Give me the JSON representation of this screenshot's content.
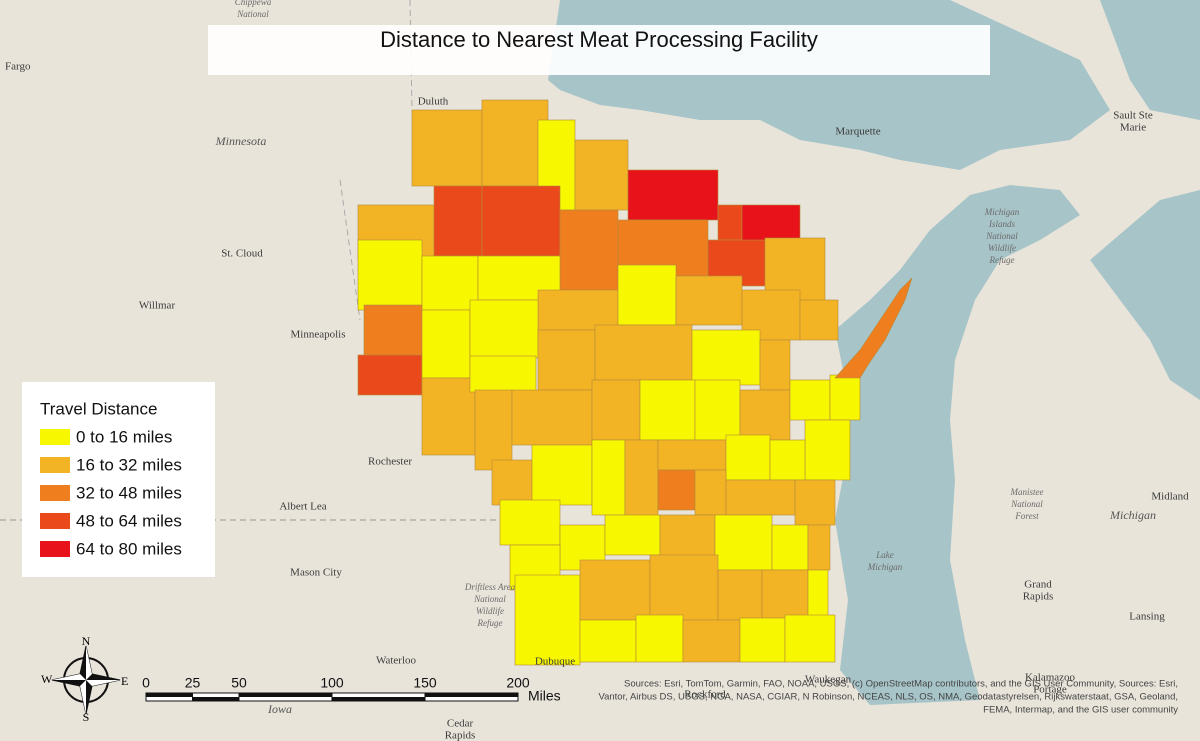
{
  "title": "Distance to Nearest Meat Processing Facility",
  "legend": {
    "title": "Travel Distance",
    "items": [
      {
        "label": "0 to 16 miles",
        "color": "#f7f700"
      },
      {
        "label": "16 to 32 miles",
        "color": "#f2b324"
      },
      {
        "label": "32 to 48 miles",
        "color": "#ee7e1e"
      },
      {
        "label": "48 to 64 miles",
        "color": "#ea4a1b"
      },
      {
        "label": "64 to 80 miles",
        "color": "#e8121a"
      }
    ]
  },
  "scale_bar": {
    "ticks": [
      0,
      25,
      50,
      100,
      150,
      200
    ],
    "unit": "Miles"
  },
  "compass": {
    "n": "N",
    "s": "S",
    "e": "E",
    "w": "W"
  },
  "places": [
    {
      "lines": [
        "Fargo"
      ]
    },
    {
      "lines": [
        "Chippewa",
        "National"
      ]
    },
    {
      "lines": [
        "Duluth"
      ]
    },
    {
      "lines": [
        "Minnesota"
      ]
    },
    {
      "lines": [
        "St. Cloud"
      ]
    },
    {
      "lines": [
        "Willmar"
      ]
    },
    {
      "lines": [
        "Minneapolis"
      ]
    },
    {
      "lines": [
        "Rochester"
      ]
    },
    {
      "lines": [
        "Albert Lea"
      ]
    },
    {
      "lines": [
        "Mason City"
      ]
    },
    {
      "lines": [
        "Waterloo"
      ]
    },
    {
      "lines": [
        "Iowa"
      ]
    },
    {
      "lines": [
        "Cedar",
        "Rapids"
      ]
    },
    {
      "lines": [
        "Dubuque"
      ]
    },
    {
      "lines": [
        "Marquette"
      ]
    },
    {
      "lines": [
        "Sault Ste",
        "Marie"
      ]
    },
    {
      "lines": [
        "Michigan",
        "Islands",
        "National",
        "Wildlife",
        "Refuge"
      ]
    },
    {
      "lines": [
        "Lake",
        "Michigan"
      ]
    },
    {
      "lines": [
        "Manistee",
        "National",
        "Forest"
      ]
    },
    {
      "lines": [
        "Michigan"
      ]
    },
    {
      "lines": [
        "Midland"
      ]
    },
    {
      "lines": [
        "Grand",
        "Rapids"
      ]
    },
    {
      "lines": [
        "Lansing"
      ]
    },
    {
      "lines": [
        "Kalamazoo",
        "Portage"
      ]
    },
    {
      "lines": [
        "Rockford"
      ]
    },
    {
      "lines": [
        "Waukegan"
      ]
    },
    {
      "lines": [
        "Driftless Area",
        "National",
        "Wildlife",
        "Refuge"
      ]
    }
  ],
  "attribution": [
    "Sources: Esri, TomTom, Garmin, FAO, NOAA, USGS, (c) OpenStreetMap contributors, and the GIS User Community, Sources: Esri,",
    "Vantor, Airbus DS, USGS, NGA, NASA, CGIAR, N Robinson, NCEAS, NLS, OS, NMA, Geodatastyrelsen, Rijkswaterstaat, GSA, Geoland,",
    "FEMA, Intermap, and the GIS user community"
  ]
}
